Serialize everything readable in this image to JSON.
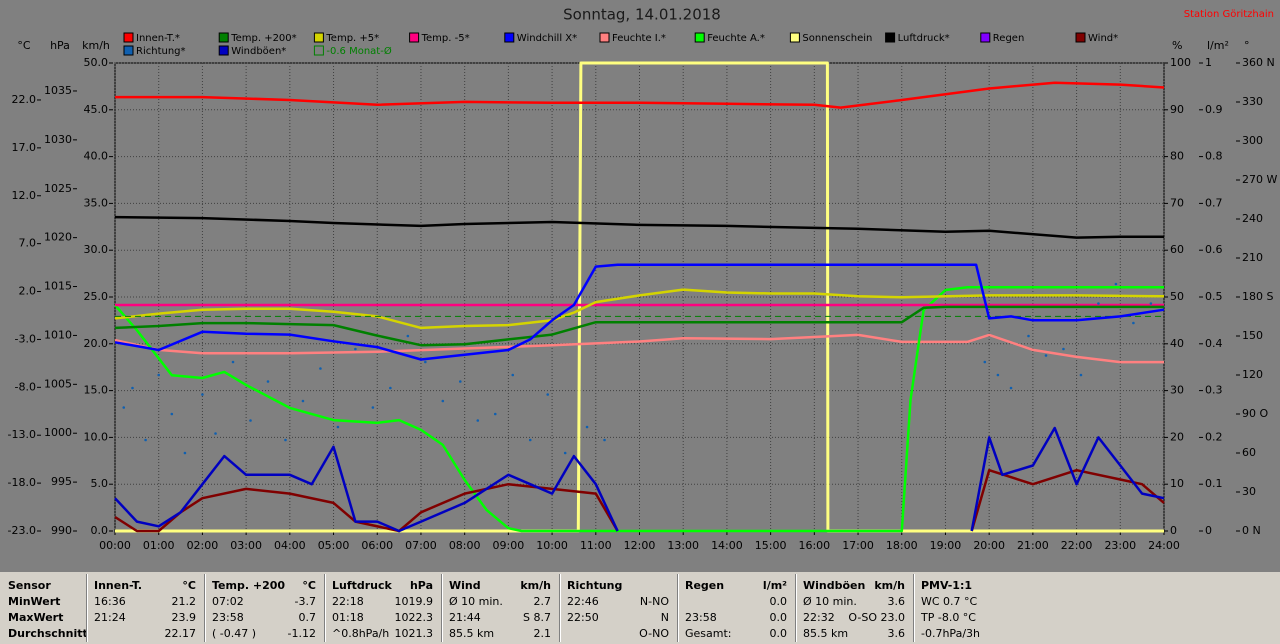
{
  "header": {
    "title": "Sonntag, 14.01.2018",
    "station": "Station Göritzhain"
  },
  "chart_data": {
    "type": "line",
    "xlim": [
      0,
      24
    ],
    "xticks": [
      {
        "value": 0,
        "label": "00:00"
      },
      {
        "value": 1,
        "label": "01:00"
      },
      {
        "value": 2,
        "label": "02:00"
      },
      {
        "value": 3,
        "label": "03:00"
      },
      {
        "value": 4,
        "label": "04:00"
      },
      {
        "value": 5,
        "label": "05:00"
      },
      {
        "value": 6,
        "label": "06:00"
      },
      {
        "value": 7,
        "label": "07:00"
      },
      {
        "value": 8,
        "label": "08:00"
      },
      {
        "value": 9,
        "label": "09:00"
      },
      {
        "value": 10,
        "label": "10:00"
      },
      {
        "value": 11,
        "label": "11:00"
      },
      {
        "value": 12,
        "label": "12:00"
      },
      {
        "value": 13,
        "label": "13:00"
      },
      {
        "value": 14,
        "label": "14:00"
      },
      {
        "value": 15,
        "label": "15:00"
      },
      {
        "value": 16,
        "label": "16:00"
      },
      {
        "value": 17,
        "label": "17:00"
      },
      {
        "value": 18,
        "label": "18:00"
      },
      {
        "value": 19,
        "label": "19:00"
      },
      {
        "value": 20,
        "label": "20:00"
      },
      {
        "value": 21,
        "label": "21:00"
      },
      {
        "value": 22,
        "label": "22:00"
      },
      {
        "value": 23,
        "label": "23:00"
      },
      {
        "value": 24,
        "label": "24:00"
      }
    ],
    "grid": true,
    "y_axes": [
      {
        "unit": "°C",
        "side": "left",
        "lim": [
          -23,
          25.86
        ],
        "ticks": [
          {
            "value": 22,
            "label": "22.0"
          },
          {
            "value": 17,
            "label": "17.0"
          },
          {
            "value": 12,
            "label": "12.0"
          },
          {
            "value": 7,
            "label": "7.0"
          },
          {
            "value": 2,
            "label": "2.0"
          },
          {
            "value": -3,
            "label": "-3.0"
          },
          {
            "value": -8,
            "label": "-8.0"
          },
          {
            "value": -13,
            "label": "-13.0"
          },
          {
            "value": -18,
            "label": "-18.0"
          },
          {
            "value": -23,
            "label": "-23.0"
          }
        ]
      },
      {
        "unit": "hPa",
        "side": "left",
        "lim": [
          990,
          1037.86
        ],
        "ticks": [
          1035,
          1030,
          1025,
          1020,
          1015,
          1010,
          1005,
          1000,
          995,
          990
        ]
      },
      {
        "unit": "km/h",
        "side": "left",
        "lim": [
          0,
          50
        ],
        "ticks": [
          {
            "value": 50,
            "label": "50.0"
          },
          {
            "value": 45,
            "label": "45.0"
          },
          {
            "value": 40,
            "label": "40.0"
          },
          {
            "value": 35,
            "label": "35.0"
          },
          {
            "value": 30,
            "label": "30.0"
          },
          {
            "value": 25,
            "label": "25.0"
          },
          {
            "value": 20,
            "label": "20.0"
          },
          {
            "value": 15,
            "label": "15.0"
          },
          {
            "value": 10,
            "label": "10.0"
          },
          {
            "value": 5,
            "label": "5.0"
          },
          {
            "value": 0,
            "label": "0.0"
          }
        ]
      },
      {
        "unit": "%",
        "side": "right",
        "lim": [
          0,
          100
        ],
        "ticks": [
          100,
          90,
          80,
          70,
          60,
          50,
          40,
          30,
          20,
          10,
          0
        ]
      },
      {
        "unit": "l/m²",
        "side": "right",
        "lim": [
          0,
          1
        ],
        "ticks": [
          1,
          0.9,
          0.8,
          0.7,
          0.6,
          0.5,
          0.4,
          0.3,
          0.2,
          0.1,
          0
        ]
      },
      {
        "unit": "°",
        "side": "right",
        "lim": [
          0,
          360
        ],
        "ticks": [
          {
            "value": 360,
            "label": "360 N"
          },
          330,
          300,
          {
            "value": 270,
            "label": "270 W"
          },
          240,
          210,
          {
            "value": 180,
            "label": "180 S"
          },
          150,
          120,
          {
            "value": 90,
            "label": "90 O"
          },
          60,
          30,
          {
            "value": 0,
            "label": "0 N"
          }
        ]
      }
    ],
    "series": [
      {
        "name": "Innen-T.*",
        "color": "#ff0000",
        "axis": 0,
        "x": [
          0,
          2,
          4,
          6,
          8,
          10,
          12,
          14,
          16,
          16.6,
          18,
          19,
          20,
          21.5,
          23,
          24
        ],
        "values": [
          22.3,
          22.3,
          22.0,
          21.5,
          21.8,
          21.7,
          21.7,
          21.6,
          21.5,
          21.2,
          22.0,
          22.6,
          23.2,
          23.8,
          23.6,
          23.3
        ]
      },
      {
        "name": "Temp. +200*",
        "color": "#008000",
        "axis": 0,
        "x": [
          0,
          1,
          2,
          3,
          4,
          5,
          6,
          7,
          8,
          9,
          10,
          11,
          12,
          18,
          18.5,
          19,
          24
        ],
        "values": [
          -1.8,
          -1.6,
          -1.3,
          -1.3,
          -1.4,
          -1.5,
          -2.6,
          -3.6,
          -3.5,
          -3.0,
          -2.5,
          -1.2,
          -1.2,
          -1.2,
          0.3,
          0.4,
          0.4
        ]
      },
      {
        "name": "Temp. +5*",
        "color": "#d4d400",
        "axis": 0,
        "x": [
          0,
          1,
          2,
          3,
          4,
          5,
          6,
          7,
          8,
          9,
          10,
          10.5,
          11,
          12,
          13,
          14,
          15,
          16,
          17,
          18,
          20,
          22,
          24
        ],
        "values": [
          -0.8,
          -0.3,
          0.1,
          0.2,
          0.2,
          -0.1,
          -0.6,
          -1.8,
          -1.6,
          -1.5,
          -1.0,
          -0.2,
          0.9,
          1.6,
          2.2,
          1.9,
          1.8,
          1.8,
          1.5,
          1.4,
          1.6,
          1.6,
          1.5
        ]
      },
      {
        "name": "Temp. -5*",
        "color": "#ff0080",
        "axis": 0,
        "x": [
          0,
          24
        ],
        "values": [
          0.6,
          0.6
        ]
      },
      {
        "name": "Windchill X*",
        "color": "#0000ff",
        "axis": 0,
        "x": [
          0,
          1,
          2,
          3,
          4,
          5,
          6,
          7,
          8,
          9,
          9.5,
          10,
          10.5,
          11,
          11.5,
          19.7,
          20,
          20.5,
          21,
          22,
          23,
          24
        ],
        "values": [
          -3.3,
          -4.1,
          -2.2,
          -2.4,
          -2.5,
          -3.2,
          -3.8,
          -5.1,
          -4.6,
          -4.1,
          -3.0,
          -1.0,
          0.6,
          4.6,
          4.8,
          4.8,
          -0.8,
          -0.6,
          -1.0,
          -1.0,
          -0.6,
          0.1
        ]
      },
      {
        "name": "Feuchte I.*",
        "color": "#ff8080",
        "axis": 3,
        "x": [
          0,
          1,
          2,
          4,
          6,
          8,
          10,
          12,
          13,
          15,
          17,
          18,
          19.5,
          20,
          21,
          22,
          23,
          24
        ],
        "values": [
          40.8,
          38.7,
          38.0,
          38.0,
          38.3,
          39.0,
          39.7,
          40.5,
          41.2,
          41.0,
          41.9,
          40.4,
          40.4,
          41.9,
          38.7,
          37.2,
          36.1,
          36.1
        ]
      },
      {
        "name": "Feuchte A.*",
        "color": "#00ff00",
        "axis": 3,
        "x": [
          0,
          0.5,
          1.3,
          2,
          2.5,
          3,
          4,
          5,
          6,
          6.5,
          7,
          7.5,
          8,
          8.5,
          9,
          9.3,
          18,
          18.2,
          18.5,
          19,
          19.5,
          24
        ],
        "values": [
          48.3,
          42.9,
          33.3,
          32.7,
          34.0,
          31.2,
          26.3,
          23.7,
          23.1,
          23.7,
          21.6,
          18.4,
          10.9,
          4.5,
          0.6,
          0,
          0,
          28,
          47.2,
          51.5,
          52.1,
          52.1
        ]
      },
      {
        "name": "Sonnenschein",
        "color": "#ffff80",
        "axis": 3,
        "x": [
          0,
          10.6,
          10.66,
          16.3,
          16.31,
          24
        ],
        "values": [
          0,
          0,
          100,
          100,
          0,
          0
        ]
      },
      {
        "name": "Luftdruck*",
        "color": "#000000",
        "axis": 1,
        "x": [
          0,
          2,
          4,
          5,
          7,
          8,
          10,
          12,
          14,
          16,
          17,
          19,
          20,
          22,
          23,
          24
        ],
        "values": [
          1022.1,
          1022.0,
          1021.7,
          1021.5,
          1021.2,
          1021.4,
          1021.6,
          1021.3,
          1021.2,
          1021.0,
          1020.9,
          1020.6,
          1020.7,
          1020.0,
          1020.1,
          1020.1
        ]
      },
      {
        "name": "Regen",
        "color": "#8000ff",
        "axis": 4,
        "x": [],
        "values": []
      },
      {
        "name": "Wind*",
        "color": "#800000",
        "axis": 2,
        "x": [
          0,
          0.5,
          1,
          1.5,
          2,
          3,
          4,
          5,
          5.5,
          6.5,
          7,
          8,
          9,
          10,
          11,
          11.5,
          15,
          19.6,
          20,
          21,
          22,
          23,
          23.5,
          24
        ],
        "values": [
          1.5,
          0,
          0,
          2,
          3.5,
          4.5,
          4,
          3,
          1,
          0,
          2,
          4,
          5,
          4.5,
          4,
          0,
          null,
          0,
          6.5,
          5,
          6.5,
          5.5,
          5,
          3
        ]
      },
      {
        "name": "Richtung*",
        "color": "#1060b0",
        "axis": 5,
        "style": "dots",
        "x": [
          0.2,
          0.4,
          0.7,
          1.0,
          1.3,
          1.6,
          2.0,
          2.3,
          2.7,
          3.1,
          3.5,
          3.9,
          4.3,
          4.7,
          5.1,
          5.5,
          5.9,
          6.3,
          6.7,
          7.1,
          7.5,
          7.9,
          8.3,
          8.7,
          9.1,
          9.5,
          9.9,
          10.3,
          10.8,
          11.2,
          19.9,
          20.2,
          20.5,
          20.9,
          21.3,
          21.7,
          22.1,
          22.5,
          22.9,
          23.3,
          23.7
        ],
        "values": [
          95,
          110,
          70,
          120,
          90,
          60,
          105,
          75,
          130,
          85,
          115,
          70,
          100,
          125,
          80,
          140,
          95,
          110,
          150,
          130,
          100,
          115,
          85,
          90,
          120,
          70,
          105,
          60,
          80,
          70,
          130,
          120,
          110,
          150,
          135,
          140,
          120,
          175,
          190,
          160,
          175
        ]
      },
      {
        "name": "Windböen*",
        "color": "#0000c0",
        "axis": 2,
        "x": [
          0,
          0.5,
          1,
          1.5,
          2,
          2.5,
          3,
          4,
          4.5,
          5,
          5.5,
          6,
          6.5,
          7,
          8,
          9,
          9.5,
          10,
          10.5,
          11,
          11.5,
          15,
          19.6,
          20,
          20.3,
          21,
          21.5,
          22,
          22.5,
          23,
          23.5,
          24
        ],
        "values": [
          3.5,
          1,
          0.5,
          2,
          5,
          8,
          6,
          6,
          5,
          9,
          1,
          1,
          0,
          1,
          3,
          6,
          5,
          4,
          8,
          5,
          0,
          null,
          0,
          10,
          6,
          7,
          11,
          5,
          10,
          7,
          4,
          3.5
        ]
      },
      {
        "name": "-0.6 Monat-Ø",
        "color": "#008000",
        "axis": 0,
        "style": "dashed",
        "x": [
          0,
          24
        ],
        "values": [
          -0.6,
          -0.6
        ]
      }
    ]
  },
  "table": {
    "corner": "Sensor",
    "row_labels": [
      "MinWert",
      "MaxWert",
      "Durchschnitt"
    ],
    "groups": [
      {
        "name": "Innen-T.",
        "unit": "°C",
        "rows": [
          {
            "left": "16:36",
            "right": "21.2"
          },
          {
            "left": "21:24",
            "right": "23.9"
          },
          {
            "right": "22.17"
          }
        ]
      },
      {
        "name": "Temp. +200",
        "unit": "°C",
        "rows": [
          {
            "left": "07:02",
            "right": "-3.7"
          },
          {
            "left": "23:58",
            "right": "0.7"
          },
          {
            "left": "( -0.47 )",
            "right": "-1.12"
          }
        ]
      },
      {
        "name": "Luftdruck",
        "unit": "hPa",
        "rows": [
          {
            "left": "22:18",
            "right": "1019.9"
          },
          {
            "left": "01:18",
            "right": "1022.3"
          },
          {
            "left": "^0.8hPa/h",
            "right": "1021.3"
          }
        ]
      },
      {
        "name": "Wind",
        "unit": "km/h",
        "rows": [
          {
            "left": "Ø 10 min.",
            "right": "2.7"
          },
          {
            "left": "21:44",
            "right": "S 8.7"
          },
          {
            "left": "85.5 km",
            "right": "2.1"
          }
        ]
      },
      {
        "name": "Richtung",
        "rows": [
          {
            "left": "22:46",
            "right": "N-NO"
          },
          {
            "left": "22:50",
            "right": "N"
          },
          {
            "right": "O-NO"
          }
        ]
      },
      {
        "name": "Regen",
        "unit": "l/m²",
        "rows": [
          {
            "right": "0.0"
          },
          {
            "left": "23:58",
            "right": "0.0"
          },
          {
            "left": "Gesamt:",
            "right": "0.0"
          }
        ]
      },
      {
        "name": "Windböen",
        "unit": "km/h",
        "rows": [
          {
            "left": "Ø 10 min.",
            "right": "3.6"
          },
          {
            "left": "22:32",
            "right": "O-SO 23.0"
          },
          {
            "left": "85.5 km",
            "right": "3.6"
          }
        ]
      },
      {
        "name": "PMV-1:1",
        "rows": [
          {
            "left": "WC 0.7 °C"
          },
          {
            "left": "TP -8.0 °C"
          },
          {
            "left": "-0.7hPa/3h"
          }
        ]
      }
    ]
  }
}
